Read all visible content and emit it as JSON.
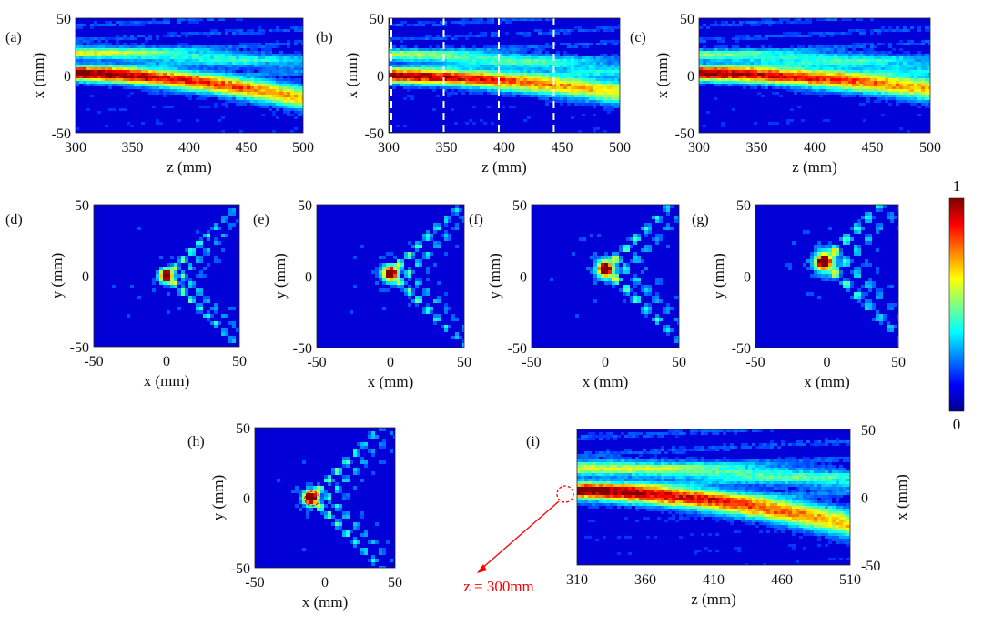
{
  "colormap": {
    "name": "jet",
    "stops": [
      "#00008f",
      "#0000ff",
      "#0080ff",
      "#00ffff",
      "#80ff80",
      "#ffff00",
      "#ff8000",
      "#ff0000",
      "#800000"
    ],
    "colorbar": {
      "max_label": "1",
      "min_label": "0",
      "min": 0,
      "max": 1
    }
  },
  "annotation": {
    "text": "z = 300mm",
    "color": "#ff0000"
  },
  "chart_data": [
    {
      "id": "a",
      "panel_label": "(a)",
      "type": "heatmap",
      "xlabel": "z (mm)",
      "ylabel": "x (mm)",
      "xlim": [
        300,
        500
      ],
      "ylim": [
        -50,
        50
      ],
      "xticks": [
        "300",
        "350",
        "400",
        "450",
        "500"
      ],
      "yticks": [
        "50",
        "0",
        "-50"
      ],
      "beams": [
        {
          "z": [
            300,
            500
          ],
          "x": [
            2,
            -20
          ],
          "width": 6,
          "intensity": [
            0.95,
            0.55
          ]
        },
        {
          "z": [
            300,
            500
          ],
          "x": [
            20,
            10
          ],
          "width": 5,
          "intensity": [
            0.45,
            0.15
          ]
        }
      ]
    },
    {
      "id": "b",
      "panel_label": "(b)",
      "type": "heatmap",
      "xlabel": "z (mm)",
      "ylabel": "x (mm)",
      "xlim": [
        300,
        510
      ],
      "ylim": [
        -50,
        50
      ],
      "xticks": [
        "300",
        "350",
        "400",
        "450",
        "500"
      ],
      "yticks": [
        "50",
        "0",
        "-50"
      ],
      "marker_lines_z": [
        300,
        350,
        400,
        450
      ],
      "beams": [
        {
          "z": [
            300,
            510
          ],
          "x": [
            0,
            -15
          ],
          "width": 6,
          "intensity": [
            0.9,
            0.5
          ]
        },
        {
          "z": [
            300,
            510
          ],
          "x": [
            18,
            5
          ],
          "width": 5,
          "intensity": [
            0.4,
            0.2
          ]
        }
      ]
    },
    {
      "id": "c",
      "panel_label": "(c)",
      "type": "heatmap",
      "xlabel": "z (mm)",
      "ylabel": "x (mm)",
      "xlim": [
        300,
        510
      ],
      "ylim": [
        -50,
        50
      ],
      "xticks": [
        "300",
        "350",
        "400",
        "450",
        "500"
      ],
      "yticks": [
        "50",
        "0",
        "-50"
      ],
      "beams": [
        {
          "z": [
            300,
            510
          ],
          "x": [
            2,
            -12
          ],
          "width": 6,
          "intensity": [
            0.92,
            0.55
          ]
        },
        {
          "z": [
            300,
            510
          ],
          "x": [
            18,
            8
          ],
          "width": 5,
          "intensity": [
            0.35,
            0.2
          ]
        }
      ]
    },
    {
      "id": "d",
      "panel_label": "(d)",
      "type": "heatmap",
      "xlabel": "x (mm)",
      "ylabel": "y (mm)",
      "xlim": [
        -50,
        50
      ],
      "ylim": [
        -50,
        50
      ],
      "xticks": [
        "-50",
        "0",
        "50"
      ],
      "yticks": [
        "50",
        "0",
        "-50"
      ],
      "peak": {
        "x": 0,
        "y": 0,
        "intensity": 1
      },
      "lobe_spacing_mm": 8
    },
    {
      "id": "e",
      "panel_label": "(e)",
      "type": "heatmap",
      "xlabel": "x (mm)",
      "ylabel": "y (mm)",
      "xlim": [
        -50,
        50
      ],
      "ylim": [
        -50,
        50
      ],
      "xticks": [
        "-50",
        "0",
        "50"
      ],
      "yticks": [
        "50",
        "0",
        "-50"
      ],
      "peak": {
        "x": 0,
        "y": 2,
        "intensity": 0.95
      },
      "lobe_spacing_mm": 9
    },
    {
      "id": "f",
      "panel_label": "(f)",
      "type": "heatmap",
      "xlabel": "x (mm)",
      "ylabel": "y (mm)",
      "xlim": [
        -50,
        50
      ],
      "ylim": [
        -50,
        50
      ],
      "xticks": [
        "-50",
        "0",
        "50"
      ],
      "yticks": [
        "50",
        "0",
        "-50"
      ],
      "peak": {
        "x": 0,
        "y": 5,
        "intensity": 0.92
      },
      "lobe_spacing_mm": 10
    },
    {
      "id": "g",
      "panel_label": "(g)",
      "type": "heatmap",
      "xlabel": "x (mm)",
      "ylabel": "y (mm)",
      "xlim": [
        -50,
        50
      ],
      "ylim": [
        -50,
        50
      ],
      "xticks": [
        "-50",
        "0",
        "50"
      ],
      "yticks": [
        "50",
        "0",
        "-50"
      ],
      "peak": {
        "x": -2,
        "y": 10,
        "intensity": 0.95
      },
      "lobe_spacing_mm": 11
    },
    {
      "id": "h",
      "panel_label": "(h)",
      "type": "heatmap",
      "xlabel": "x (mm)",
      "ylabel": "y (mm)",
      "xlim": [
        -50,
        50
      ],
      "ylim": [
        -50,
        50
      ],
      "xticks": [
        "-50",
        "0",
        "50"
      ],
      "yticks": [
        "50",
        "0",
        "-50"
      ],
      "peak": {
        "x": -10,
        "y": 0,
        "intensity": 1
      },
      "lobe_spacing_mm": 9
    },
    {
      "id": "i",
      "panel_label": "(i)",
      "type": "heatmap",
      "xlabel": "z (mm)",
      "ylabel": "x (mm)",
      "xlim": [
        310,
        510
      ],
      "ylim": [
        -50,
        50
      ],
      "xticks": [
        "310",
        "360",
        "410",
        "460",
        "510"
      ],
      "yticks": [
        "50",
        "0",
        "-50"
      ],
      "beams": [
        {
          "z": [
            310,
            510
          ],
          "x": [
            5,
            -20
          ],
          "width": 6,
          "intensity": [
            0.95,
            0.55
          ]
        },
        {
          "z": [
            310,
            510
          ],
          "x": [
            22,
            12
          ],
          "width": 5,
          "intensity": [
            0.45,
            0.25
          ]
        }
      ]
    }
  ]
}
